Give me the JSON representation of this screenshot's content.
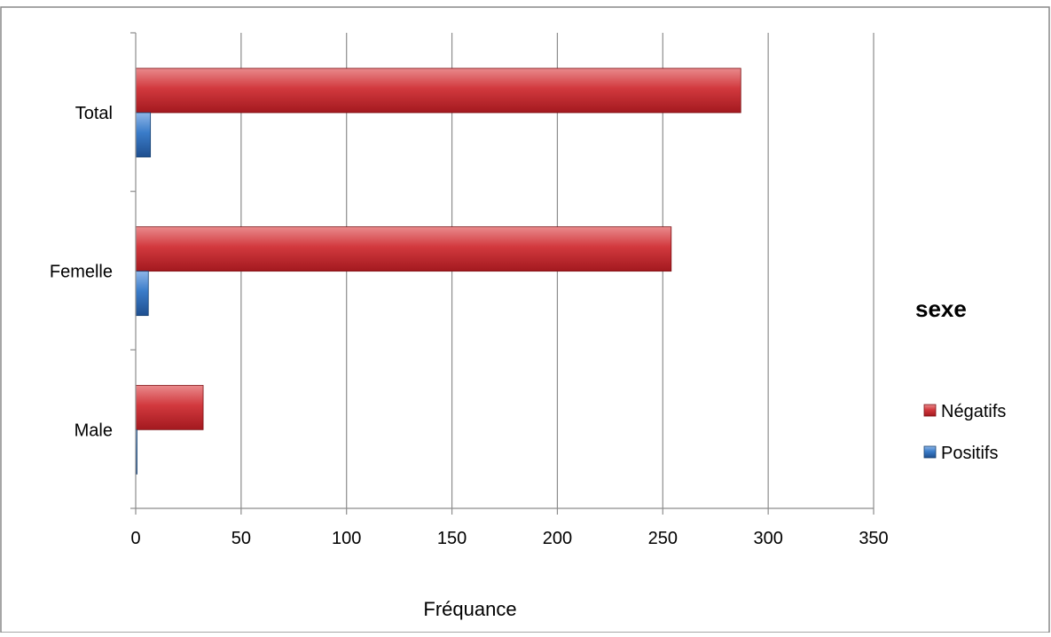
{
  "chart_data": {
    "type": "bar",
    "orientation": "horizontal",
    "categories": [
      "Total",
      "Femelle",
      "Male"
    ],
    "series": [
      {
        "name": "Négatifs",
        "values": [
          287,
          254,
          32
        ],
        "color": "#c0272d"
      },
      {
        "name": "Positifs",
        "values": [
          7,
          6,
          0
        ],
        "color": "#2f6fbf"
      }
    ],
    "xlabel": "Fréquance",
    "xlim": [
      0,
      350
    ],
    "xticks": [
      0,
      50,
      100,
      150,
      200,
      250,
      300,
      350
    ],
    "grid": true,
    "legend": {
      "title": "sexe",
      "placement": "right",
      "entries": [
        "Négatifs",
        "Positifs"
      ]
    }
  }
}
